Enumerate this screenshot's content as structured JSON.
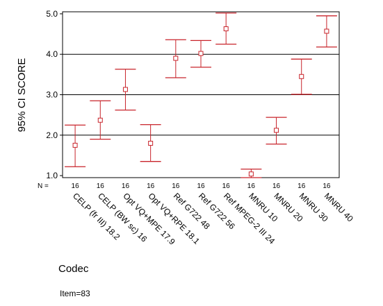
{
  "chart_data": {
    "type": "errorbar",
    "ylabel": "95% CI SCORE",
    "xlabel": "Codec",
    "footnote": "Item=83",
    "n_prefix": "N =",
    "ylim": [
      0.95,
      5.05
    ],
    "yticks": [
      "1.0",
      "2.0",
      "3.0",
      "4.0",
      "5.0"
    ],
    "grid_y": [
      2.0,
      3.0,
      4.0
    ],
    "color": "#c8232a",
    "categories": [
      {
        "label": "CELP (fr III) 18.2",
        "n": "16",
        "mean": 1.75,
        "lower": 1.22,
        "upper": 2.25
      },
      {
        "label": "CELP (BW sc) 16",
        "n": "16",
        "mean": 2.37,
        "lower": 1.9,
        "upper": 2.85
      },
      {
        "label": "Opt VQ+MPE 17.9",
        "n": "16",
        "mean": 3.13,
        "lower": 2.62,
        "upper": 3.63
      },
      {
        "label": "Opt VQ+RPE 18.1",
        "n": "16",
        "mean": 1.8,
        "lower": 1.35,
        "upper": 2.26
      },
      {
        "label": "Ref G722 48",
        "n": "16",
        "mean": 3.9,
        "lower": 3.42,
        "upper": 4.36
      },
      {
        "label": "Ref G722 56",
        "n": "16",
        "mean": 4.02,
        "lower": 3.68,
        "upper": 4.34
      },
      {
        "label": "Ref MPEG-2 III 24",
        "n": "16",
        "mean": 4.63,
        "lower": 4.25,
        "upper": 5.02
      },
      {
        "label": "MNRU 10",
        "n": "16",
        "mean": 1.04,
        "lower": 0.95,
        "upper": 1.16
      },
      {
        "label": "MNRU 20",
        "n": "16",
        "mean": 2.12,
        "lower": 1.78,
        "upper": 2.44
      },
      {
        "label": "MNRU 30",
        "n": "16",
        "mean": 3.45,
        "lower": 3.01,
        "upper": 3.88
      },
      {
        "label": "MNRU 40",
        "n": "16",
        "mean": 4.57,
        "lower": 4.18,
        "upper": 4.95
      }
    ]
  }
}
